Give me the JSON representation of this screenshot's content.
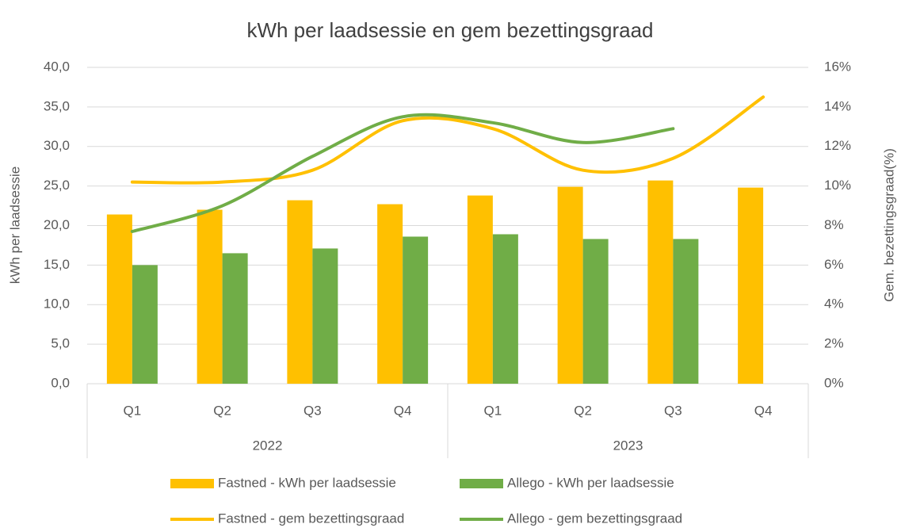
{
  "chart_data": {
    "type": "bar-line",
    "title": "kWh per laadsessie en gem bezettingsgraad",
    "ylabel": "kWh per laadsessie",
    "y2label": "Gem. bezettingsgraad(%)",
    "groups": [
      {
        "name": "2022",
        "categories": [
          "Q1",
          "Q2",
          "Q3",
          "Q4"
        ]
      },
      {
        "name": "2023",
        "categories": [
          "Q1",
          "Q2",
          "Q3",
          "Q4"
        ]
      }
    ],
    "ylim": [
      0,
      40
    ],
    "yticks": [
      {
        "value": 0,
        "label": "0,0"
      },
      {
        "value": 5,
        "label": "5,0"
      },
      {
        "value": 10,
        "label": "10,0"
      },
      {
        "value": 15,
        "label": "15,0"
      },
      {
        "value": 20,
        "label": "20,0"
      },
      {
        "value": 25,
        "label": "25,0"
      },
      {
        "value": 30,
        "label": "30,0"
      },
      {
        "value": 35,
        "label": "35,0"
      },
      {
        "value": 40,
        "label": "40,0"
      }
    ],
    "y2lim": [
      0,
      16
    ],
    "y2ticks": [
      {
        "value": 0,
        "label": "0%"
      },
      {
        "value": 2,
        "label": "2%"
      },
      {
        "value": 4,
        "label": "4%"
      },
      {
        "value": 6,
        "label": "6%"
      },
      {
        "value": 8,
        "label": "8%"
      },
      {
        "value": 10,
        "label": "10%"
      },
      {
        "value": 12,
        "label": "12%"
      },
      {
        "value": 14,
        "label": "14%"
      },
      {
        "value": 16,
        "label": "16%"
      }
    ],
    "grid": true,
    "legend": "bottom",
    "series": [
      {
        "name": "Fastned - kWh per laadsessie",
        "type": "bar",
        "color": "#ffc000",
        "values": [
          21.4,
          22.0,
          23.2,
          22.7,
          23.8,
          24.9,
          25.7,
          24.8
        ]
      },
      {
        "name": "Allego - kWh per laadsessie",
        "type": "bar",
        "color": "#70ad47",
        "values": [
          15.0,
          16.5,
          17.1,
          18.6,
          18.9,
          18.3,
          18.3,
          null
        ]
      },
      {
        "name": "Fastned - gem bezettingsgraad",
        "type": "line",
        "axis": "y2",
        "color": "#ffc000",
        "values": [
          10.2,
          10.2,
          10.8,
          13.3,
          12.9,
          10.8,
          11.4,
          14.5
        ]
      },
      {
        "name": "Allego - gem bezettingsgraad",
        "type": "line",
        "axis": "y2",
        "color": "#70ad47",
        "values": [
          7.7,
          9.0,
          11.5,
          13.5,
          13.2,
          12.2,
          12.9,
          null
        ]
      }
    ]
  }
}
